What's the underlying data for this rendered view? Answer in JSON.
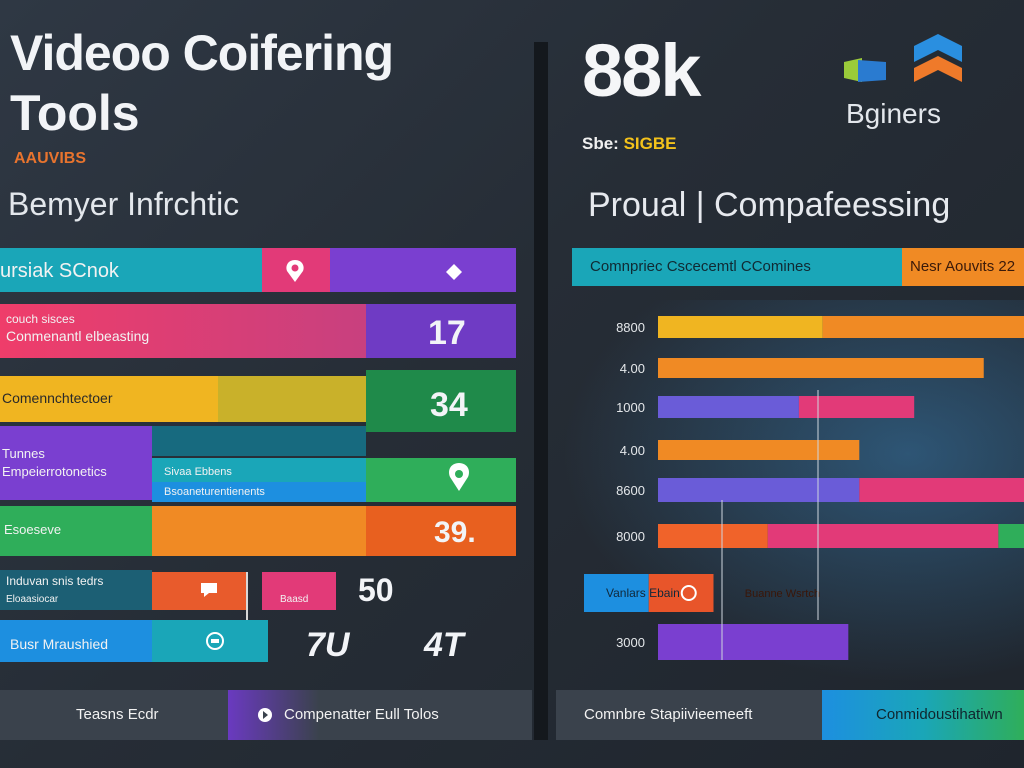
{
  "header": {
    "title_line1": "Videoo Coifering",
    "title_line2": "Tools",
    "tag": "AAUVIBS",
    "subtitle": "Bemyer Infrchtic"
  },
  "right_header": {
    "big_number": "88k",
    "sbe_prefix": "Sbe:",
    "sbe_highlight": "SIGBE",
    "brand": "Bginers",
    "subtitle": "Proual | Compafeessing"
  },
  "left_panel": {
    "top_bar_label": "ursiak SCnok",
    "rows": [
      {
        "label1": "couch sisces",
        "label2": "Conmenantl elbeasting",
        "number": "17"
      },
      {
        "label1": "Comennchtectoer",
        "label2": "",
        "number": "34"
      },
      {
        "label1": "Tunnes",
        "label2": "Empeierrotonetics",
        "inner1": "Sivaa Ebbens",
        "inner2": "Bsoaneturentienents",
        "number": ""
      },
      {
        "label1": "Esoeseve",
        "label2": "",
        "number": "39."
      },
      {
        "label1": "Induvan snis tedrs",
        "label2": "Eloaasiocar",
        "inner1": "Baasd",
        "number": "50"
      },
      {
        "label1": "Busr Mraushied",
        "label2": "",
        "number": "7U",
        "number2": "4T"
      }
    ],
    "footer_left": "Teasns Ecdr",
    "footer_right": "Compenatter Eull Tolos"
  },
  "chart_data": {
    "type": "bar",
    "title": "",
    "header_left": "Comnpriec Cscecemtl CComines",
    "header_right": "Nesr Aouvits 22",
    "categories": [
      "8800",
      "4.00",
      "1000",
      "4.00",
      "8600",
      "8000",
      "Vanlars Ebain",
      "3000"
    ],
    "series": [
      {
        "values": [
          100,
          89,
          70,
          55,
          100,
          100,
          37,
          52
        ]
      }
    ],
    "segment_labels": {
      "6": [
        "Vanlars Ebain",
        "Buanne Wsrtch"
      ]
    },
    "grid": false,
    "legend": "none",
    "footer_left": "Comnbre Stapiivieemeeft",
    "footer_right": "Conmidoustihatiwn"
  },
  "colors": {
    "teal": "#1aa6b8",
    "purple": "#7a3fd0",
    "pink": "#e23a78",
    "orange": "#f08a24",
    "green": "#2fae5a",
    "blue": "#1d8fe0",
    "yellow": "#f0b521"
  },
  "icons": [
    "location-pin-icon",
    "diamond-icon",
    "pin-icon",
    "chat-icon",
    "rocket-icon",
    "arrow-icon",
    "logo-cube-icon"
  ]
}
